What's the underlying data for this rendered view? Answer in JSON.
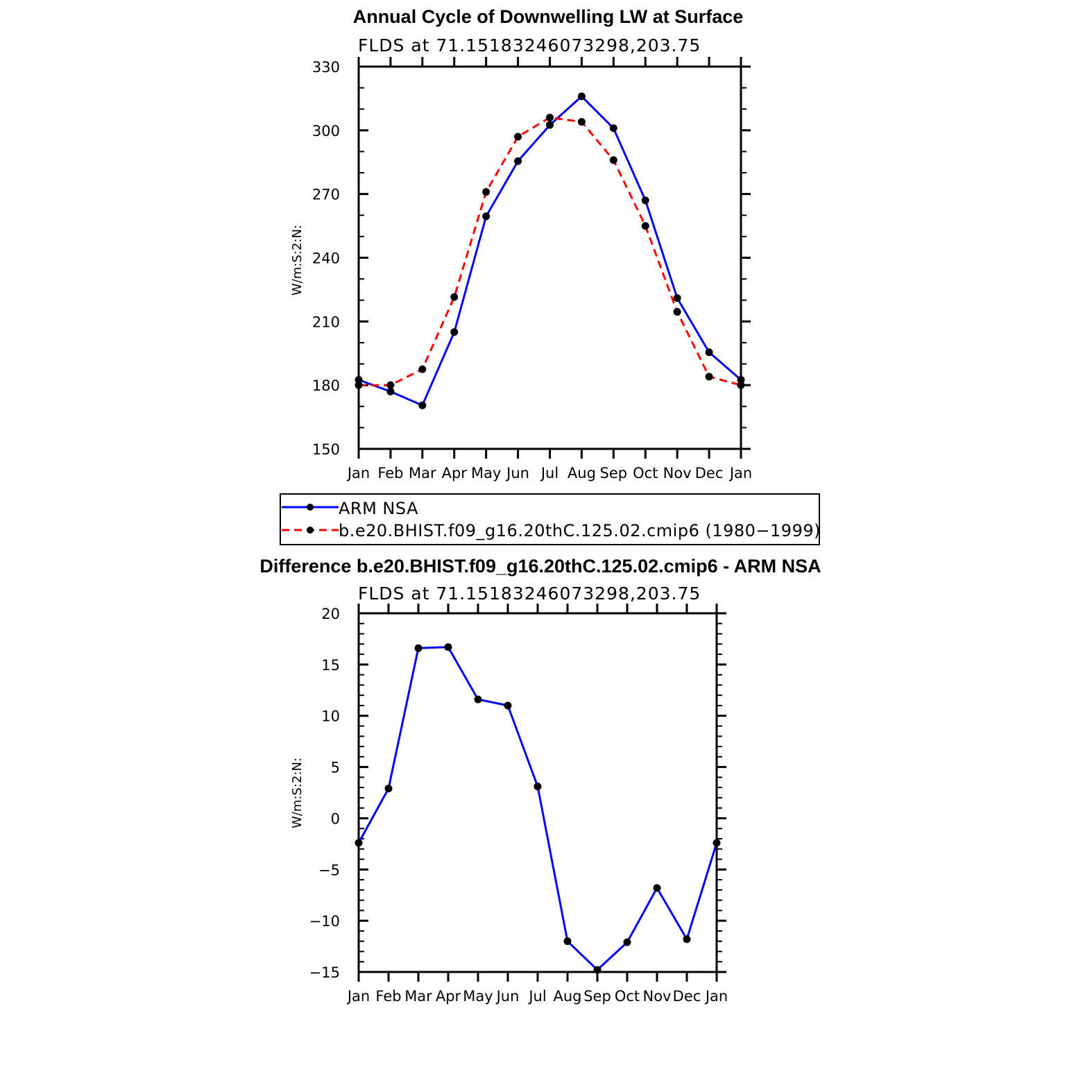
{
  "chart_data": [
    {
      "type": "line",
      "title": "Annual Cycle of Downwelling LW at Surface",
      "subtitle": "FLDS at 71.15183246073298,203.75",
      "ylabel": "W/m:S:2:N:",
      "xlabel": "",
      "categories": [
        "Jan",
        "Feb",
        "Mar",
        "Apr",
        "May",
        "Jun",
        "Jul",
        "Aug",
        "Sep",
        "Oct",
        "Nov",
        "Dec",
        "Jan"
      ],
      "ylim": [
        150,
        330
      ],
      "yticks": [
        "150",
        "180",
        "210",
        "240",
        "270",
        "300",
        "330"
      ],
      "series": [
        {
          "name": "ARM NSA",
          "color": "#0000ff",
          "dash": "solid",
          "values": [
            182.5,
            177,
            170.5,
            205,
            259.5,
            285.5,
            302.5,
            316,
            301,
            267,
            221,
            195.5,
            182.5
          ]
        },
        {
          "name": "b.e20.BHIST.f09_g16.20thC.125.02.cmip6 (1980−1999)",
          "color": "#ff0000",
          "dash": "dashed",
          "values": [
            180,
            180,
            187.5,
            221.5,
            271,
            297,
            306,
            304,
            286,
            255,
            214.5,
            184,
            180
          ]
        }
      ],
      "legend_position": "below"
    },
    {
      "type": "line",
      "title": "Difference b.e20.BHIST.f09_g16.20thC.125.02.cmip6 - ARM NSA",
      "subtitle": "FLDS at 71.15183246073298,203.75",
      "ylabel": "W/m:S:2:N:",
      "xlabel": "",
      "categories": [
        "Jan",
        "Feb",
        "Mar",
        "Apr",
        "May",
        "Jun",
        "Jul",
        "Aug",
        "Sep",
        "Oct",
        "Nov",
        "Dec",
        "Jan"
      ],
      "ylim": [
        -15,
        20
      ],
      "yticks": [
        "−15",
        "−10",
        "−5",
        "0",
        "5",
        "10",
        "15",
        "20"
      ],
      "series": [
        {
          "name": "Difference",
          "color": "#0000ff",
          "dash": "solid",
          "values": [
            -2.4,
            2.9,
            16.6,
            16.7,
            11.6,
            11.0,
            3.1,
            -12.0,
            -14.8,
            -12.1,
            -6.8,
            -11.8,
            -2.4
          ]
        }
      ]
    }
  ]
}
